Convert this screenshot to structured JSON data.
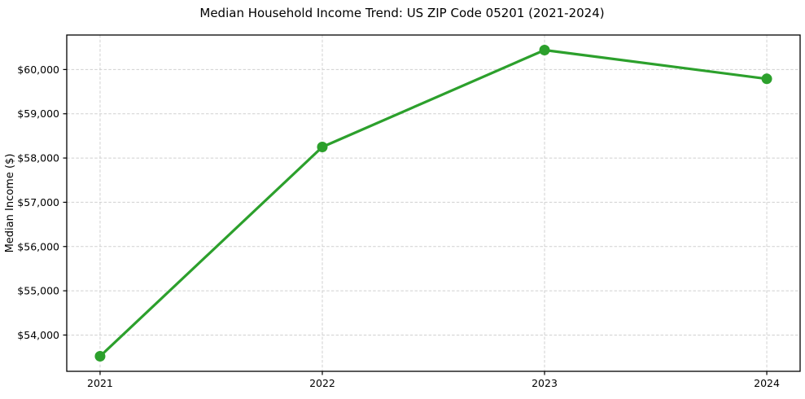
{
  "chart_data": {
    "type": "line",
    "title": "Median Household Income Trend: US ZIP Code 05201 (2021-2024)",
    "xlabel": "",
    "ylabel": "Median Income ($)",
    "x": [
      2021,
      2022,
      2023,
      2024
    ],
    "x_tick_labels": [
      "2021",
      "2022",
      "2023",
      "2024"
    ],
    "values": [
      53520,
      58250,
      60440,
      59790
    ],
    "y_ticks": [
      54000,
      55000,
      56000,
      57000,
      58000,
      59000,
      60000
    ],
    "y_tick_labels": [
      "$54,000",
      "$55,000",
      "$56,000",
      "$57,000",
      "$58,000",
      "$59,000",
      "$60,000"
    ],
    "xlim": [
      2020.85,
      2024.15
    ],
    "ylim": [
      53180,
      60780
    ],
    "grid": true,
    "grid_style": "dashed",
    "grid_color": "#d0d0d0",
    "line_color": "#2ca02c",
    "marker_color": "#2ca02c",
    "marker": "circle",
    "legend_position": "none",
    "background_color": "#ffffff"
  }
}
